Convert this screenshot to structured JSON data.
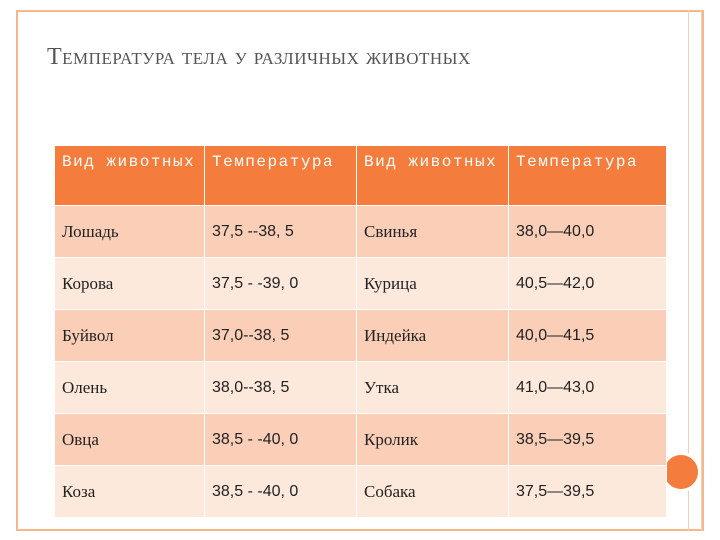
{
  "title": "Температура тела у различных животных",
  "table": {
    "headers": [
      "Вид животных",
      "Температура",
      "Вид животных",
      "Температура"
    ],
    "rows": [
      [
        "Лошадь",
        "37,5 --38, 5",
        "Свинья",
        "38,0—40,0"
      ],
      [
        "Корова",
        "37,5 - -39, 0",
        "Курица",
        "40,5—42,0"
      ],
      [
        "Буйвол",
        "37,0--38, 5",
        "Индейка",
        "40,0—41,5"
      ],
      [
        "Олень",
        "38,0--38, 5",
        "Утка",
        "41,0—43,0"
      ],
      [
        "Овца",
        "38,5 - -40, 0",
        "Кролик",
        "38,5—39,5"
      ],
      [
        "Коза",
        "38,5 - -40, 0",
        "Собака",
        "37,5—39,5"
      ]
    ]
  },
  "colors": {
    "accent": "#f47c3c",
    "row_dark": "#fbcfb7",
    "row_light": "#fde8dc",
    "frame": "#f2b78f"
  }
}
